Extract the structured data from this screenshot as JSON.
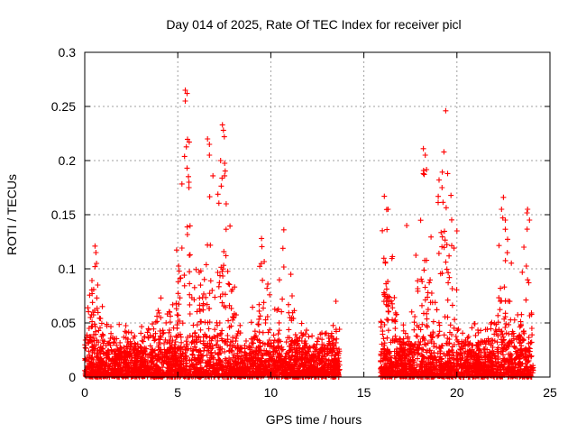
{
  "chart_data": {
    "type": "scatter",
    "title": "Day 014 of 2025, Rate Of TEC Index for receiver picl",
    "xlabel": "GPS time / hours",
    "ylabel": "ROTI / TECUs",
    "xlim": [
      0,
      25
    ],
    "ylim": [
      0,
      0.3
    ],
    "xticks": [
      0,
      5,
      10,
      15,
      20,
      25
    ],
    "xtick_labels": [
      "0",
      "5",
      "10",
      "15",
      "20",
      "25"
    ],
    "yticks": [
      0,
      0.05,
      0.1,
      0.15,
      0.2,
      0.25,
      0.3
    ],
    "ytick_labels": [
      "0",
      "0.05",
      "0.1",
      "0.15",
      "0.2",
      "0.25",
      "0.3"
    ],
    "grid": true,
    "marker": "+",
    "series": [
      {
        "name": "ROTI",
        "color": "#ff0000",
        "segments": [
          [
            0,
            13.7
          ],
          [
            15.9,
            24.1
          ]
        ],
        "notable_points": [
          {
            "x": 0.55,
            "y": 0.121
          },
          {
            "x": 0.6,
            "y": 0.115
          },
          {
            "x": 0.55,
            "y": 0.102
          },
          {
            "x": 0.7,
            "y": 0.085
          },
          {
            "x": 5.4,
            "y": 0.265
          },
          {
            "x": 5.5,
            "y": 0.262
          },
          {
            "x": 5.4,
            "y": 0.255
          },
          {
            "x": 5.5,
            "y": 0.193
          },
          {
            "x": 5.6,
            "y": 0.18
          },
          {
            "x": 5.6,
            "y": 0.175
          },
          {
            "x": 6.6,
            "y": 0.22
          },
          {
            "x": 6.7,
            "y": 0.215
          },
          {
            "x": 6.7,
            "y": 0.205
          },
          {
            "x": 7.4,
            "y": 0.233
          },
          {
            "x": 7.45,
            "y": 0.228
          },
          {
            "x": 7.5,
            "y": 0.222
          },
          {
            "x": 7.3,
            "y": 0.2
          },
          {
            "x": 7.6,
            "y": 0.16
          },
          {
            "x": 9.5,
            "y": 0.128
          },
          {
            "x": 10.7,
            "y": 0.136
          },
          {
            "x": 13.5,
            "y": 0.07
          },
          {
            "x": 16.1,
            "y": 0.167
          },
          {
            "x": 16.3,
            "y": 0.155
          },
          {
            "x": 17.3,
            "y": 0.14
          },
          {
            "x": 18.2,
            "y": 0.211
          },
          {
            "x": 18.3,
            "y": 0.205
          },
          {
            "x": 18.2,
            "y": 0.188
          },
          {
            "x": 19.3,
            "y": 0.208
          },
          {
            "x": 19.4,
            "y": 0.246
          },
          {
            "x": 19.5,
            "y": 0.188
          },
          {
            "x": 19.2,
            "y": 0.175
          },
          {
            "x": 20.0,
            "y": 0.135
          },
          {
            "x": 22.5,
            "y": 0.166
          },
          {
            "x": 22.4,
            "y": 0.155
          },
          {
            "x": 22.6,
            "y": 0.145
          },
          {
            "x": 23.8,
            "y": 0.155
          },
          {
            "x": 23.9,
            "y": 0.145
          },
          {
            "x": 23.6,
            "y": 0.12
          }
        ],
        "typical_range": [
          0,
          0.05
        ],
        "activity_peaks": [
          {
            "x": 0.55,
            "y": 0.12
          },
          {
            "x": 4.2,
            "y": 0.085
          },
          {
            "x": 5.45,
            "y": 0.265
          },
          {
            "x": 6.7,
            "y": 0.22
          },
          {
            "x": 7.45,
            "y": 0.233
          },
          {
            "x": 9.5,
            "y": 0.128
          },
          {
            "x": 10.7,
            "y": 0.136
          },
          {
            "x": 16.2,
            "y": 0.167
          },
          {
            "x": 18.25,
            "y": 0.211
          },
          {
            "x": 19.35,
            "y": 0.246
          },
          {
            "x": 22.5,
            "y": 0.166
          },
          {
            "x": 23.85,
            "y": 0.155
          }
        ]
      }
    ]
  }
}
